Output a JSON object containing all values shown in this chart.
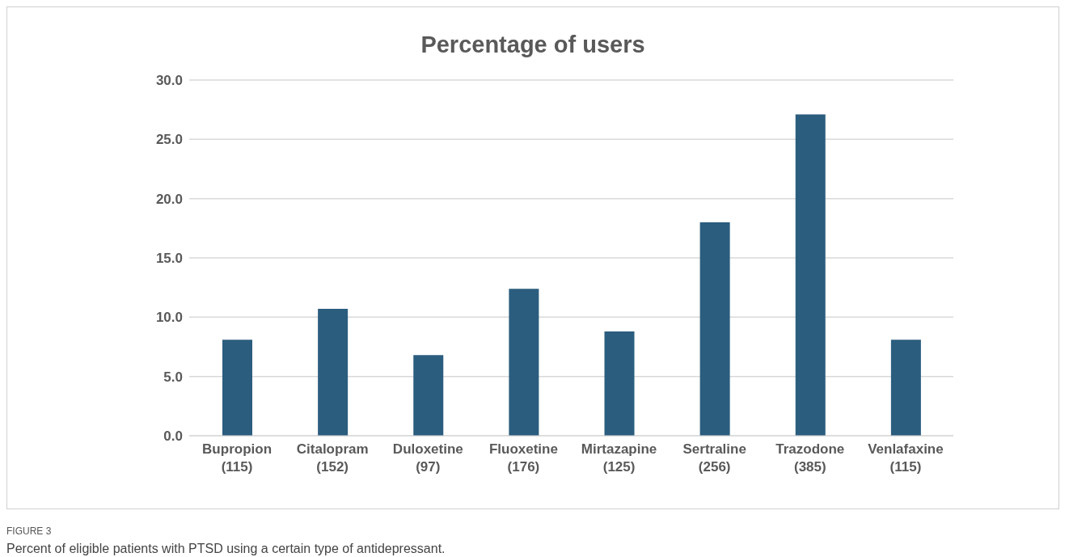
{
  "chart_data": {
    "type": "bar",
    "title": "Percentage of users",
    "categories": [
      "Bupropion\n(115)",
      "Citalopram\n(152)",
      "Duloxetine\n(97)",
      "Fluoxetine\n(176)",
      "Mirtazapine\n(125)",
      "Sertraline\n(256)",
      "Trazodone\n(385)",
      "Venlafaxine\n(115)"
    ],
    "values": [
      8.1,
      10.7,
      6.8,
      12.4,
      8.8,
      18.0,
      27.1,
      8.1
    ],
    "color": "#2b5d7e",
    "ylim": [
      0,
      30
    ],
    "yticks": [
      {
        "value": 0,
        "label": "0.0"
      },
      {
        "value": 5,
        "label": "5.0"
      },
      {
        "value": 10,
        "label": "10.0"
      },
      {
        "value": 15,
        "label": "15.0"
      },
      {
        "value": 20,
        "label": "20.0"
      },
      {
        "value": 25,
        "label": "25.0"
      },
      {
        "value": 30,
        "label": "30.0"
      }
    ],
    "grid": "y",
    "annotations": [
      "FIGURE 3",
      "Percent of eligible patients with PTSD using a certain type of antidepressant."
    ]
  }
}
